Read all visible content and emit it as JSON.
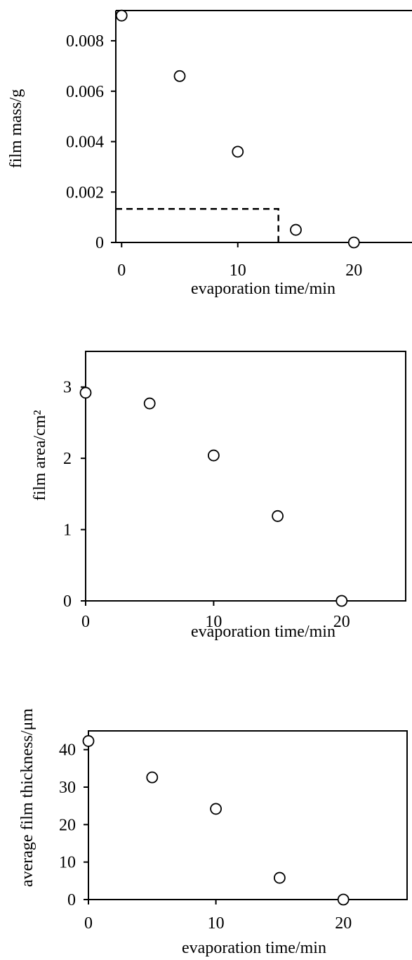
{
  "chart_data": [
    {
      "type": "scatter",
      "xlabel": "evaporation time/min",
      "ylabel": "film mass/g",
      "xlim": [
        -0.5,
        25
      ],
      "ylim": [
        0,
        0.0092
      ],
      "x_ticks": [
        0,
        10,
        20
      ],
      "x_tick_labels": [
        "0",
        "10",
        "20"
      ],
      "y_ticks": [
        0,
        0.002,
        0.004,
        0.006,
        0.008
      ],
      "y_tick_labels": [
        "0",
        "0.002",
        "0.004",
        "0.006",
        "0.008"
      ],
      "x": [
        0,
        5,
        10,
        15,
        20
      ],
      "y": [
        0.009,
        0.0066,
        0.0036,
        0.0005,
        0.0
      ],
      "marker": "open-circle",
      "guide_dashed_line": {
        "x": 13.5,
        "y": 0.00133
      },
      "frame": "top-and-left-axes-with-bottom-axis",
      "grid": false,
      "legend": "none"
    },
    {
      "type": "scatter",
      "xlabel": "evaporation time/min",
      "ylabel": "film area/cm²",
      "xlim": [
        0,
        25
      ],
      "ylim": [
        0,
        3.5
      ],
      "x_ticks": [
        0,
        10,
        20
      ],
      "x_tick_labels": [
        "0",
        "10",
        "20"
      ],
      "y_ticks": [
        0,
        1,
        2,
        3
      ],
      "y_tick_labels": [
        "0",
        "1",
        "2",
        "3"
      ],
      "x": [
        0,
        5,
        10,
        15,
        20
      ],
      "y": [
        2.92,
        2.77,
        2.04,
        1.19,
        0.0
      ],
      "marker": "open-circle",
      "frame": "box",
      "grid": false,
      "legend": "none"
    },
    {
      "type": "scatter",
      "xlabel": "evaporation time/min",
      "ylabel": "average film thickness/μm",
      "xlim": [
        0,
        25
      ],
      "ylim": [
        0,
        45
      ],
      "x_ticks": [
        0,
        10,
        20
      ],
      "x_tick_labels": [
        "0",
        "10",
        "20"
      ],
      "y_ticks": [
        0,
        10,
        20,
        30,
        40
      ],
      "y_tick_labels": [
        "0",
        "10",
        "20",
        "30",
        "40"
      ],
      "x": [
        0,
        5,
        10,
        15,
        20
      ],
      "y": [
        42.3,
        32.6,
        24.2,
        5.8,
        0.0
      ],
      "marker": "open-circle",
      "frame": "box",
      "grid": false,
      "legend": "none"
    }
  ]
}
